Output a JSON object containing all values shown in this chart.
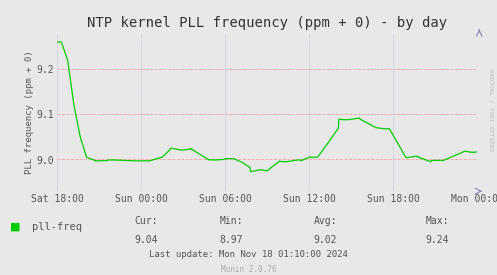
{
  "title": "NTP kernel PLL frequency (ppm + 0) - by day",
  "ylabel": "PLL frequency (ppm + 0)",
  "background_color": "#e8e8e8",
  "plot_bg_color": "#e8e8e8",
  "line_color": "#00cc00",
  "ytick_labels": [
    "9.0",
    "9.1",
    "9.2"
  ],
  "ytick_vals": [
    9.0,
    9.1,
    9.2
  ],
  "ylim": [
    8.93,
    9.28
  ],
  "xtick_labels": [
    "Sat 18:00",
    "Sun 00:00",
    "Sun 06:00",
    "Sun 12:00",
    "Sun 18:00",
    "Mon 00:00"
  ],
  "cur_val": "9.04",
  "min_val": "8.97",
  "avg_val": "9.02",
  "max_val": "9.24",
  "last_update": "Last update: Mon Nov 18 01:10:00 2024",
  "munin_version": "Munin 2.0.76",
  "legend_label": "pll-freq",
  "rrdtool_label": "RRDTOOL / TOBI OETIKER",
  "title_fontsize": 10,
  "tick_fontsize": 7,
  "stats_fontsize": 7,
  "legend_fontsize": 7.5
}
